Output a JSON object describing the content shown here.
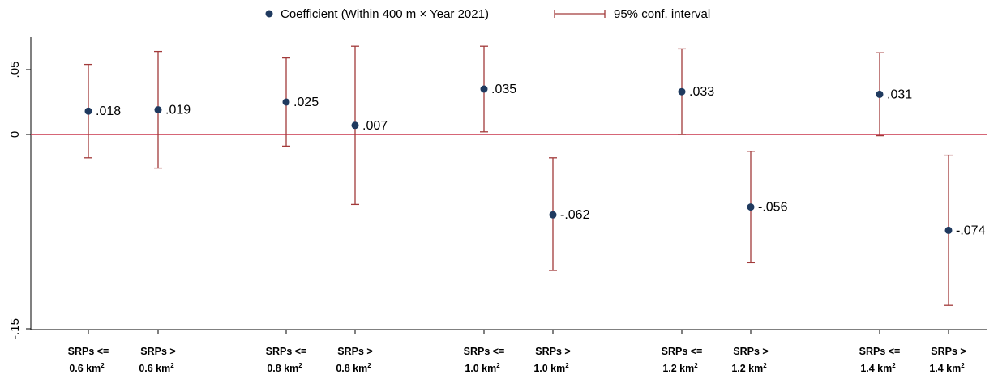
{
  "chart_data": {
    "type": "scatter",
    "subtype": "coefficient plot with 95% confidence intervals",
    "legend": {
      "placement": "top-center",
      "entries": [
        {
          "label": "Coefficient (Within 400 m × Year 2021)",
          "marker": "dot",
          "color": "#1f3a5f"
        },
        {
          "label": "95% conf. interval",
          "marker": "capped-line",
          "color": "#a23a3a"
        }
      ]
    },
    "y_axis": {
      "ticks": [
        0.05,
        0,
        -0.15
      ],
      "tick_labels": [
        ".05",
        "0",
        "-.15"
      ],
      "ylim": [
        -0.152,
        0.075
      ]
    },
    "reference_line": {
      "y": 0,
      "color": "#c9334a"
    },
    "grid": false,
    "categories": [
      {
        "line1": "SRPs <=",
        "line2": "0.6 km",
        "sup": "2"
      },
      {
        "line1": "SRPs >",
        "line2": "0.6 km",
        "sup": "2"
      },
      {
        "line1": "SRPs <=",
        "line2": "0.8 km",
        "sup": "2"
      },
      {
        "line1": "SRPs >",
        "line2": "0.8 km",
        "sup": "2"
      },
      {
        "line1": "SRPs <=",
        "line2": "1.0 km",
        "sup": "2"
      },
      {
        "line1": "SRPs >",
        "line2": "1.0 km",
        "sup": "2"
      },
      {
        "line1": "SRPs <=",
        "line2": "1.2 km",
        "sup": "2"
      },
      {
        "line1": "SRPs >",
        "line2": "1.2 km",
        "sup": "2"
      },
      {
        "line1": "SRPs <=",
        "line2": "1.4 km",
        "sup": "2"
      },
      {
        "line1": "SRPs >",
        "line2": "1.4 km",
        "sup": "2"
      }
    ],
    "points": [
      {
        "coef": 0.018,
        "label": ".018",
        "ci": [
          -0.018,
          0.054
        ]
      },
      {
        "coef": 0.019,
        "label": ".019",
        "ci": [
          -0.026,
          0.064
        ]
      },
      {
        "coef": 0.025,
        "label": ".025",
        "ci": [
          -0.009,
          0.059
        ]
      },
      {
        "coef": 0.007,
        "label": ".007",
        "ci": [
          -0.054,
          0.068
        ]
      },
      {
        "coef": 0.035,
        "label": ".035",
        "ci": [
          0.002,
          0.068
        ]
      },
      {
        "coef": -0.062,
        "label": "-.062",
        "ci": [
          -0.105,
          -0.018
        ]
      },
      {
        "coef": 0.033,
        "label": ".033",
        "ci": [
          0.0,
          0.066
        ]
      },
      {
        "coef": -0.056,
        "label": "-.056",
        "ci": [
          -0.099,
          -0.013
        ]
      },
      {
        "coef": 0.031,
        "label": ".031",
        "ci": [
          -0.001,
          0.063
        ]
      },
      {
        "coef": -0.074,
        "label": "-.074",
        "ci": [
          -0.132,
          -0.016
        ]
      }
    ],
    "colors": {
      "point": "#1f3a5f",
      "ci": "#a23a3a",
      "zero_line": "#c9334a",
      "axis": "#000000"
    }
  }
}
